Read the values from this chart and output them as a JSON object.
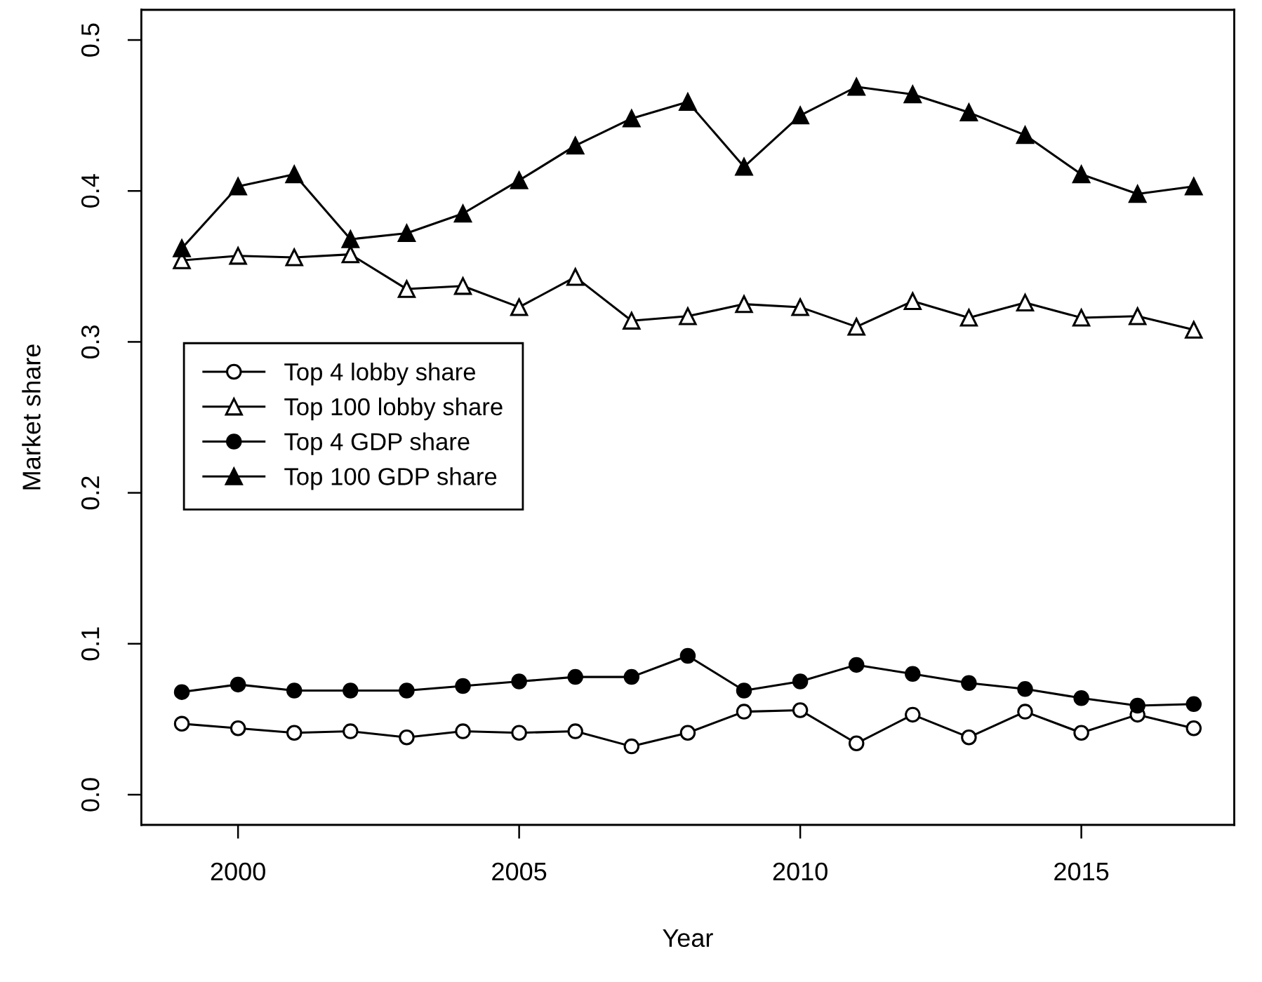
{
  "chart_data": {
    "type": "line",
    "xlabel": "Year",
    "ylabel": "Market share",
    "x": [
      1999,
      2000,
      2001,
      2002,
      2003,
      2004,
      2005,
      2006,
      2007,
      2008,
      2009,
      2010,
      2011,
      2012,
      2013,
      2014,
      2015,
      2016,
      2017
    ],
    "xlim": [
      1998.28,
      2017.72
    ],
    "xticks": [
      2000,
      2005,
      2010,
      2015
    ],
    "ylim": [
      -0.02,
      0.52
    ],
    "yticks": [
      {
        "value": 0,
        "label": "0.0"
      },
      0.1,
      0.2,
      0.3,
      0.4,
      0.5
    ],
    "grid": false,
    "legend": "left",
    "line_style": "solid",
    "series": [
      {
        "name": "Top 4 lobby share",
        "color": "#000000",
        "marker": "circle-open",
        "values": [
          0.047,
          0.044,
          0.041,
          0.042,
          0.038,
          0.042,
          0.041,
          0.042,
          0.032,
          0.041,
          0.055,
          0.056,
          0.034,
          0.053,
          0.038,
          0.055,
          0.041,
          0.053,
          0.044
        ]
      },
      {
        "name": "Top 100 lobby share",
        "color": "#000000",
        "marker": "triangle-open",
        "values": [
          0.354,
          0.357,
          0.356,
          0.358,
          0.335,
          0.337,
          0.323,
          0.343,
          0.314,
          0.317,
          0.325,
          0.323,
          0.31,
          0.327,
          0.316,
          0.326,
          0.316,
          0.317,
          0.308
        ]
      },
      {
        "name": "Top 4 GDP share",
        "color": "#000000",
        "marker": "circle",
        "values": [
          0.068,
          0.073,
          0.069,
          0.069,
          0.069,
          0.072,
          0.075,
          0.078,
          0.078,
          0.092,
          0.069,
          0.075,
          0.086,
          0.08,
          0.074,
          0.07,
          0.064,
          0.059,
          0.06
        ]
      },
      {
        "name": "Top 100 GDP share",
        "color": "#000000",
        "marker": "triangle",
        "values": [
          0.362,
          0.403,
          0.411,
          0.368,
          0.372,
          0.385,
          0.407,
          0.43,
          0.448,
          0.459,
          0.416,
          0.45,
          0.469,
          0.464,
          0.452,
          0.437,
          0.411,
          0.398,
          0.403
        ]
      }
    ]
  }
}
